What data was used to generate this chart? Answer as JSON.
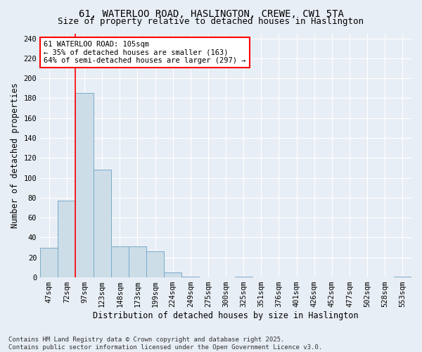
{
  "title_line1": "61, WATERLOO ROAD, HASLINGTON, CREWE, CW1 5TA",
  "title_line2": "Size of property relative to detached houses in Haslington",
  "xlabel": "Distribution of detached houses by size in Haslington",
  "ylabel": "Number of detached properties",
  "categories": [
    "47sqm",
    "72sqm",
    "97sqm",
    "123sqm",
    "148sqm",
    "173sqm",
    "199sqm",
    "224sqm",
    "249sqm",
    "275sqm",
    "300sqm",
    "325sqm",
    "351sqm",
    "376sqm",
    "401sqm",
    "426sqm",
    "452sqm",
    "477sqm",
    "502sqm",
    "528sqm",
    "553sqm"
  ],
  "values": [
    30,
    77,
    185,
    108,
    31,
    31,
    26,
    5,
    1,
    0,
    0,
    1,
    0,
    0,
    0,
    0,
    0,
    0,
    0,
    0,
    1
  ],
  "bar_color": "#ccdde8",
  "bar_edge_color": "#7aaac8",
  "red_line_x": 1.5,
  "annotation_line1": "61 WATERLOO ROAD: 105sqm",
  "annotation_line2": "← 35% of detached houses are smaller (163)",
  "annotation_line3": "64% of semi-detached houses are larger (297) →",
  "ylim": [
    0,
    245
  ],
  "yticks": [
    0,
    20,
    40,
    60,
    80,
    100,
    120,
    140,
    160,
    180,
    200,
    220,
    240
  ],
  "footer_line1": "Contains HM Land Registry data © Crown copyright and database right 2025.",
  "footer_line2": "Contains public sector information licensed under the Open Government Licence v3.0.",
  "bg_color": "#e8eef5",
  "plot_bg_color": "#e8eef5",
  "grid_color": "#ffffff",
  "title_fontsize": 10,
  "subtitle_fontsize": 9,
  "axis_label_fontsize": 8.5,
  "tick_fontsize": 7.5,
  "annotation_fontsize": 7.5,
  "footer_fontsize": 6.5
}
